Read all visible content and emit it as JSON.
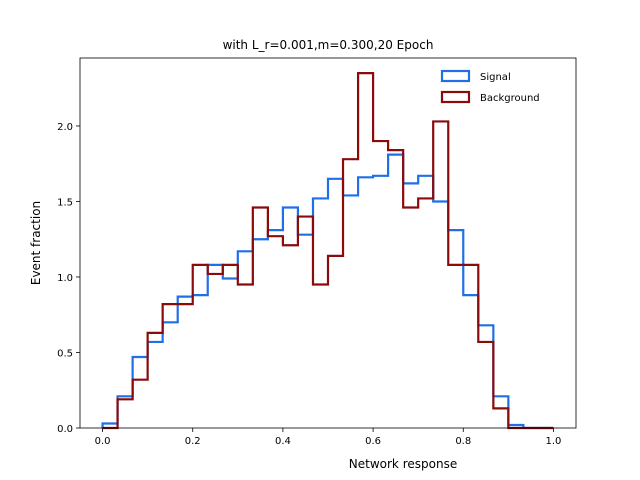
{
  "chart_data": {
    "type": "step-histogram",
    "title": "with L_r=0.001,m=0.300,20 Epoch",
    "xlabel": "Network response",
    "ylabel": "Event fraction",
    "xlim": [
      -0.05,
      1.05
    ],
    "ylim": [
      0,
      2.45
    ],
    "xticks": [
      0.0,
      0.2,
      0.4,
      0.6,
      0.8,
      1.0
    ],
    "xtick_labels": [
      "0.0",
      "0.2",
      "0.4",
      "0.6",
      "0.8",
      "1.0"
    ],
    "yticks": [
      0.0,
      0.5,
      1.0,
      1.5,
      2.0
    ],
    "ytick_labels": [
      "0.0",
      "0.5",
      "1.0",
      "1.5",
      "2.0"
    ],
    "bin_edges": [
      0.0,
      0.0333,
      0.0667,
      0.1,
      0.1333,
      0.1667,
      0.2,
      0.2333,
      0.2667,
      0.3,
      0.3333,
      0.3667,
      0.4,
      0.4333,
      0.4667,
      0.5,
      0.5333,
      0.5667,
      0.6,
      0.6333,
      0.6667,
      0.7,
      0.7333,
      0.7667,
      0.8,
      0.8333,
      0.8667,
      0.9,
      0.9333,
      0.9667,
      1.0
    ],
    "legend_position": "upper right",
    "series": [
      {
        "name": "Signal",
        "color": "#1f6fe8",
        "values": [
          0.03,
          0.21,
          0.47,
          0.57,
          0.7,
          0.87,
          0.88,
          1.08,
          0.99,
          1.17,
          1.25,
          1.31,
          1.46,
          1.28,
          1.52,
          1.65,
          1.54,
          1.66,
          1.67,
          1.81,
          1.62,
          1.67,
          1.5,
          1.31,
          0.88,
          0.68,
          0.21,
          0.02,
          0.0,
          0.0
        ]
      },
      {
        "name": "Background",
        "color": "#8b0a0a",
        "values": [
          0.0,
          0.19,
          0.32,
          0.63,
          0.82,
          0.82,
          1.08,
          1.02,
          1.08,
          0.95,
          1.46,
          1.27,
          1.21,
          1.4,
          0.95,
          1.14,
          1.78,
          2.35,
          1.9,
          1.84,
          1.46,
          1.52,
          2.03,
          1.08,
          1.08,
          0.57,
          0.13,
          0.0,
          0.0,
          0.0
        ]
      }
    ]
  }
}
